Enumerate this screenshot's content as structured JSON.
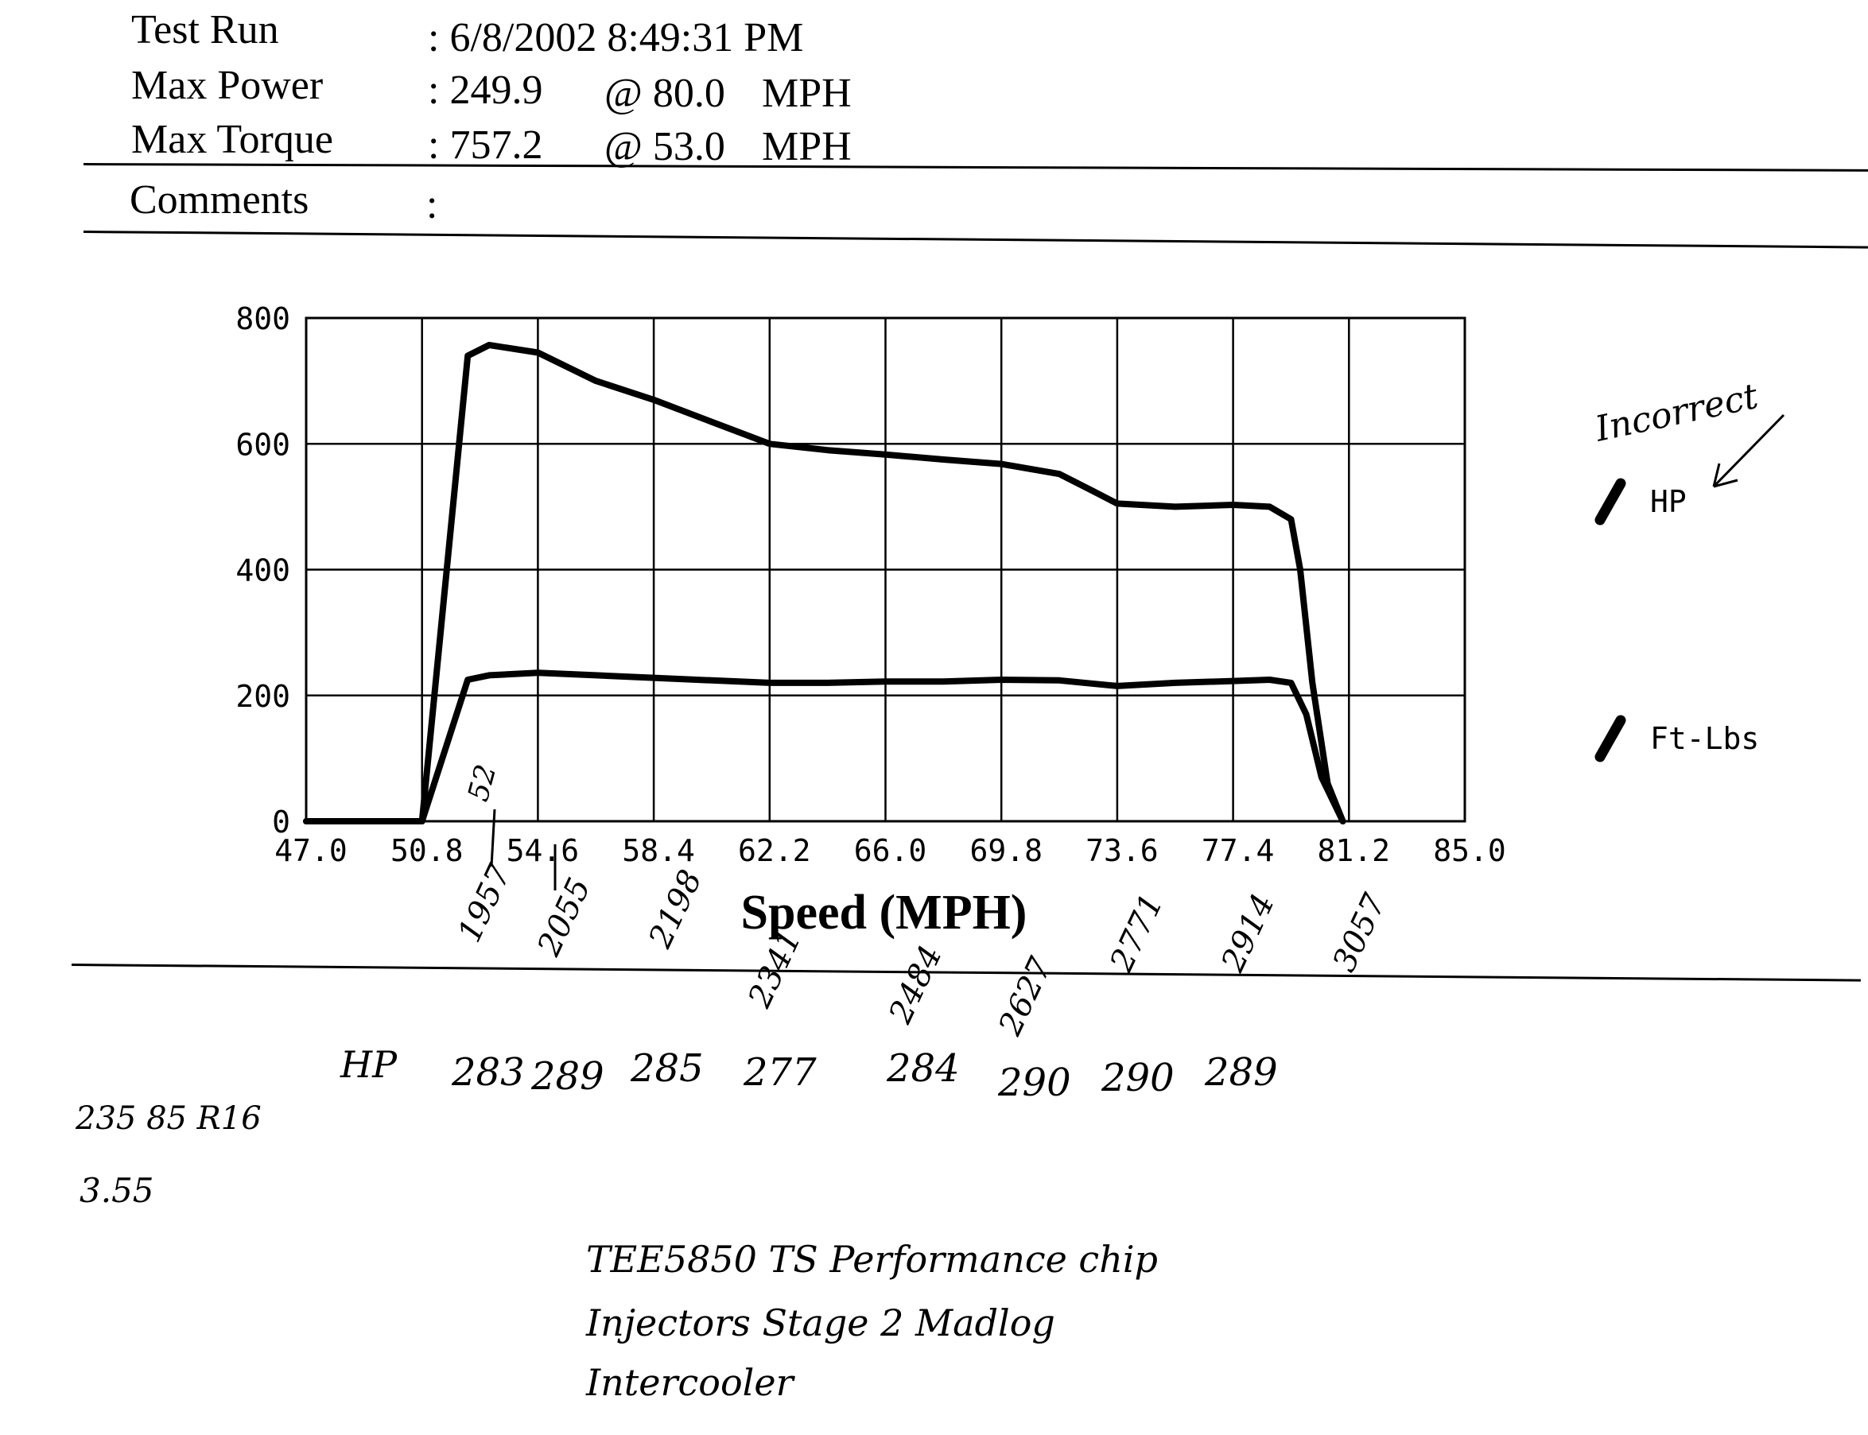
{
  "header": {
    "test_run_label": "Test Run",
    "test_run_value": ": 6/8/2002 8:49:31 PM",
    "max_power_label": "Max Power",
    "max_power_value": ": 249.9",
    "max_power_at": "@ 80.0",
    "max_power_unit": "MPH",
    "max_torque_label": "Max Torque",
    "max_torque_value": ": 757.2",
    "max_torque_at": "@ 53.0",
    "max_torque_unit": "MPH",
    "comments_label": "Comments",
    "comments_value": ":"
  },
  "chart_data": {
    "type": "line",
    "xlabel": "Speed (MPH)",
    "ylabel": "",
    "xlim": [
      47.0,
      85.0
    ],
    "ylim": [
      0,
      800
    ],
    "x_ticks": [
      "47.0",
      "50.8",
      "54.6",
      "58.4",
      "62.2",
      "66.0",
      "69.8",
      "73.6",
      "77.4",
      "81.2",
      "85.0"
    ],
    "y_ticks": [
      "0",
      "200",
      "400",
      "600",
      "800"
    ],
    "grid": true,
    "legend_position": "right",
    "series": [
      {
        "name": "HP",
        "x": [
          47.0,
          50.8,
          52.3,
          53.0,
          54.6,
          56.5,
          58.4,
          60.3,
          62.2,
          64.1,
          66.0,
          67.9,
          69.8,
          71.7,
          72.8,
          73.6,
          75.5,
          77.4,
          78.6,
          79.3,
          79.6,
          80.0,
          80.5,
          81.0
        ],
        "y": [
          0,
          0,
          740,
          757,
          745,
          700,
          670,
          635,
          600,
          590,
          583,
          575,
          568,
          552,
          525,
          505,
          500,
          503,
          500,
          480,
          400,
          220,
          60,
          0
        ]
      },
      {
        "name": "Ft-Lbs",
        "x": [
          47.0,
          50.8,
          52.3,
          53.0,
          54.6,
          56.5,
          58.4,
          60.3,
          62.2,
          64.1,
          66.0,
          67.9,
          69.8,
          71.7,
          73.6,
          75.5,
          77.4,
          78.6,
          79.3,
          79.8,
          80.3,
          81.0
        ],
        "y": [
          0,
          0,
          225,
          232,
          236,
          232,
          228,
          224,
          220,
          220,
          222,
          222,
          225,
          224,
          215,
          220,
          223,
          225,
          220,
          170,
          70,
          0
        ]
      }
    ],
    "legend": [
      "HP",
      "Ft-Lbs"
    ]
  },
  "annotations": {
    "incorrect": "Incorrect",
    "rpm_52": "52",
    "rpm_labels": [
      "1957",
      "2055",
      "2198",
      "2341",
      "2484",
      "2627",
      "2771",
      "2914",
      "3057"
    ],
    "hp_label": "HP",
    "hp_values": [
      "283",
      "289",
      "285",
      "277",
      "284",
      "290",
      "290",
      "289"
    ],
    "tire": "235 85 R16",
    "gear": "3.55",
    "mods_line1": "TEE5850   TS  Performance  chip",
    "mods_line2": "Injectors   Stage 2   Madlog",
    "mods_line3": "Intercooler"
  }
}
